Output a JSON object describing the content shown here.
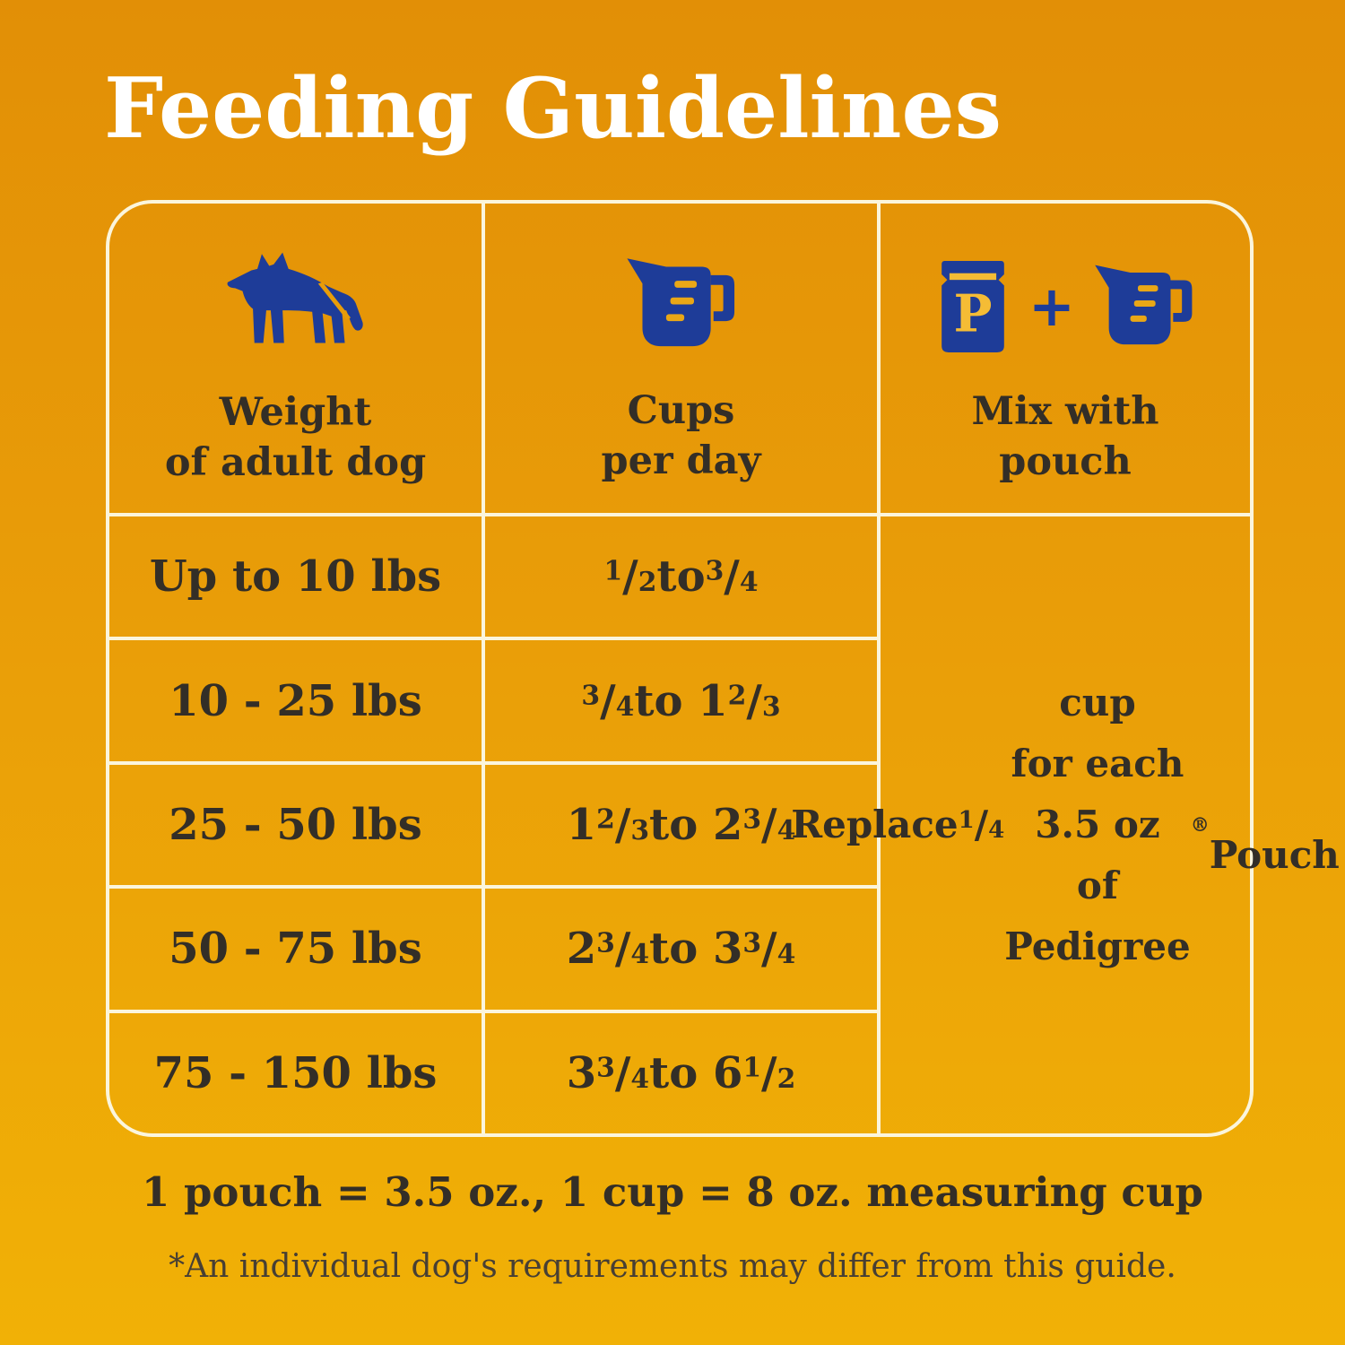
{
  "page": {
    "title": "Feeding Guidelines",
    "footnote_equivalence": "1 pouch = 3.5 oz., 1 cup = 8 oz. measuring cup",
    "footnote_disclaimer": "*An individual dog's requirements may differ from this guide."
  },
  "colors": {
    "background_top": "#E28F06",
    "background_bottom": "#F1B106",
    "table_line": "#FBF5DC",
    "accent_blue": "#1E3C98",
    "icon_tick_yellow": "#E9A716",
    "icon_letter_yellow": "#F5BC35",
    "text_dark": "#332E27",
    "title_white": "#FFFFFF"
  },
  "table": {
    "columns": [
      {
        "icon": "dog-icon",
        "label": "Weight\nof adult dog"
      },
      {
        "icon": "measuring-cup-icon",
        "label": "Cups\nper day"
      },
      {
        "icon": "pouch-plus-cup-icon",
        "label": "Mix with\npouch"
      }
    ],
    "plus_sign": "+",
    "pouch_letter": "P",
    "rows": [
      {
        "weight": "Up to 10 lbs",
        "cups": "1/2 to 3/4"
      },
      {
        "weight": "10 - 25 lbs",
        "cups": "3/4 to 1 2/3"
      },
      {
        "weight": "25 - 50 lbs",
        "cups": "1 2/3 to 2 3/4"
      },
      {
        "weight": "50 - 75 lbs",
        "cups": "2 3/4 to 3 3/4"
      },
      {
        "weight": "75 - 150 lbs",
        "cups": "3 3/4 to 6 1/2"
      }
    ],
    "mix_note": "Replace 1/4 cup\nfor each 3.5 oz\nof Pedigree®\nPouch"
  }
}
